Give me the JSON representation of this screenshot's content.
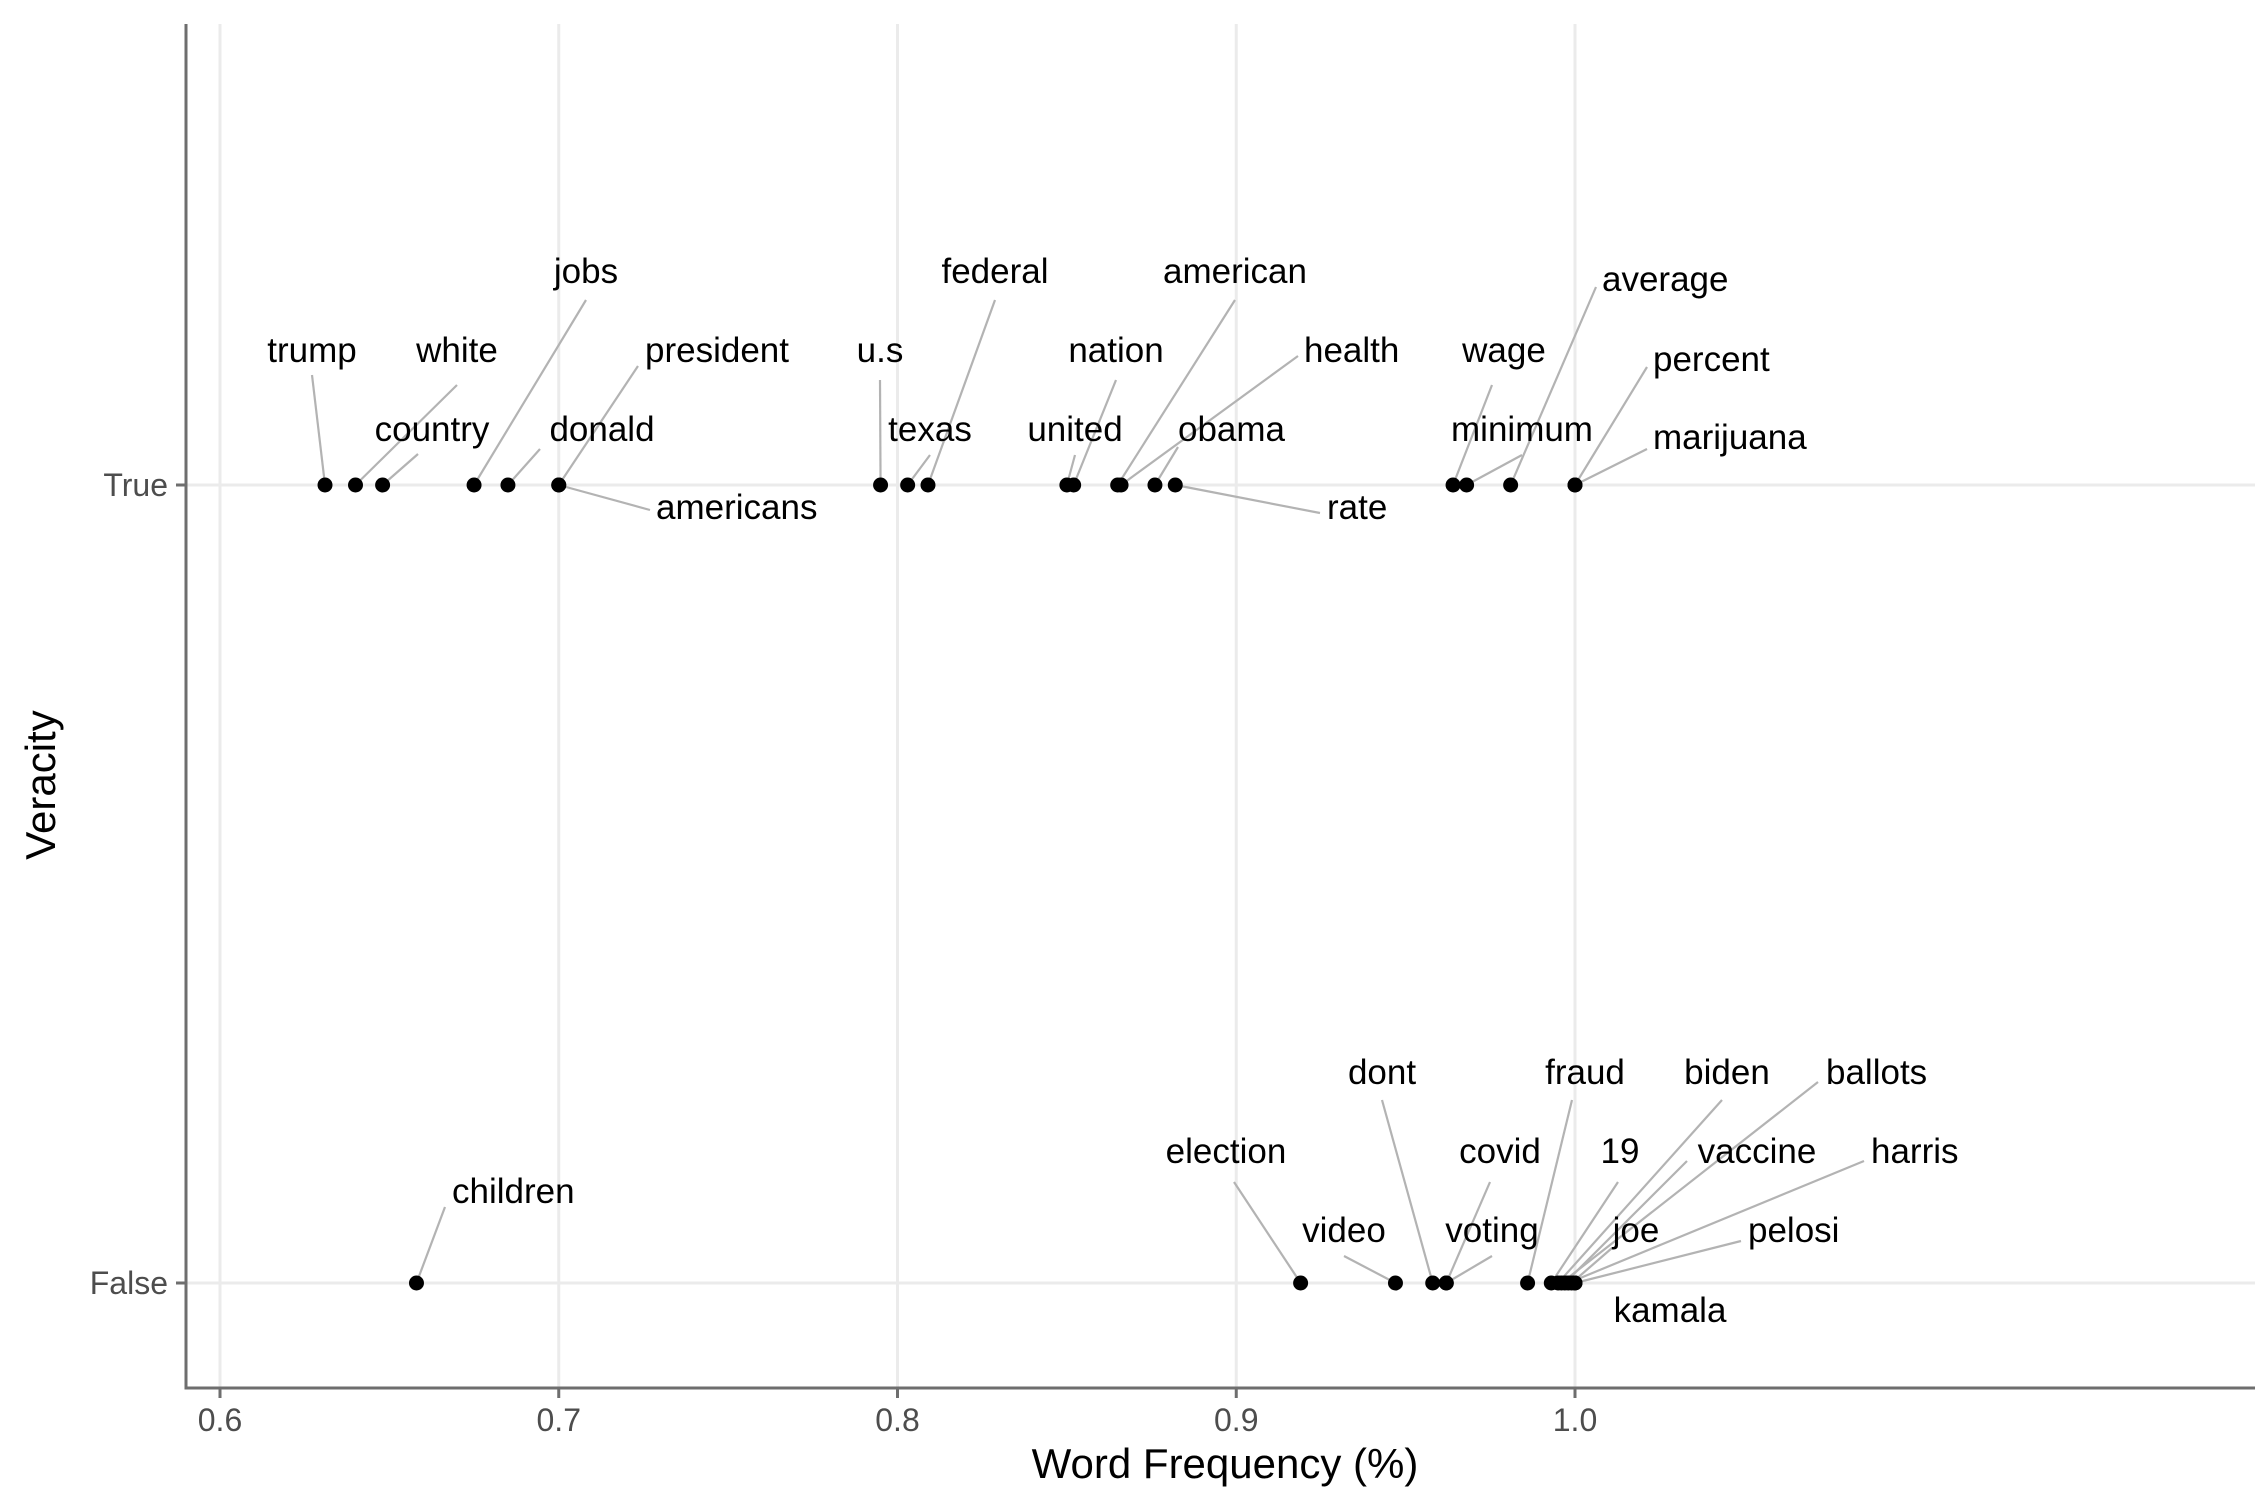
{
  "chart_data": {
    "type": "scatter",
    "xlabel": "Word Frequency (%)",
    "ylabel": "Veracity",
    "xlim": [
      0.59,
      1.2
    ],
    "x_ticks": [
      "0.6",
      "0.7",
      "0.8",
      "0.9",
      "1.0"
    ],
    "x_tick_values": [
      0.6,
      0.7,
      0.8,
      0.9,
      1.0
    ],
    "categories": [
      "True",
      "False"
    ],
    "grid": true,
    "series": [
      {
        "name": "True",
        "points": [
          {
            "word": "trump",
            "x": 0.631
          },
          {
            "word": "white",
            "x": 0.64
          },
          {
            "word": "country",
            "x": 0.648
          },
          {
            "word": "jobs",
            "x": 0.675
          },
          {
            "word": "donald",
            "x": 0.685
          },
          {
            "word": "president",
            "x": 0.7
          },
          {
            "word": "americans",
            "x": 0.7
          },
          {
            "word": "u.s",
            "x": 0.795
          },
          {
            "word": "texas",
            "x": 0.803
          },
          {
            "word": "federal",
            "x": 0.809
          },
          {
            "word": "united",
            "x": 0.85
          },
          {
            "word": "nation",
            "x": 0.852
          },
          {
            "word": "american",
            "x": 0.865
          },
          {
            "word": "health",
            "x": 0.866
          },
          {
            "word": "obama",
            "x": 0.876
          },
          {
            "word": "rate",
            "x": 0.882
          },
          {
            "word": "wage",
            "x": 0.964
          },
          {
            "word": "minimum",
            "x": 0.968
          },
          {
            "word": "average",
            "x": 0.981
          },
          {
            "word": "percent",
            "x": 1.0
          },
          {
            "word": "marijuana",
            "x": 1.0
          }
        ]
      },
      {
        "name": "False",
        "points": [
          {
            "word": "children",
            "x": 0.658
          },
          {
            "word": "election",
            "x": 0.919
          },
          {
            "word": "video",
            "x": 0.947
          },
          {
            "word": "dont",
            "x": 0.958
          },
          {
            "word": "voting",
            "x": 0.962
          },
          {
            "word": "covid",
            "x": 0.962
          },
          {
            "word": "fraud",
            "x": 0.986
          },
          {
            "word": "19",
            "x": 0.993
          },
          {
            "word": "biden",
            "x": 0.995
          },
          {
            "word": "ballots",
            "x": 0.996
          },
          {
            "word": "vaccine",
            "x": 0.997
          },
          {
            "word": "harris",
            "x": 0.998
          },
          {
            "word": "joe",
            "x": 0.999
          },
          {
            "word": "pelosi",
            "x": 1.0
          },
          {
            "word": "kamala",
            "x": 1.0
          }
        ]
      }
    ]
  }
}
